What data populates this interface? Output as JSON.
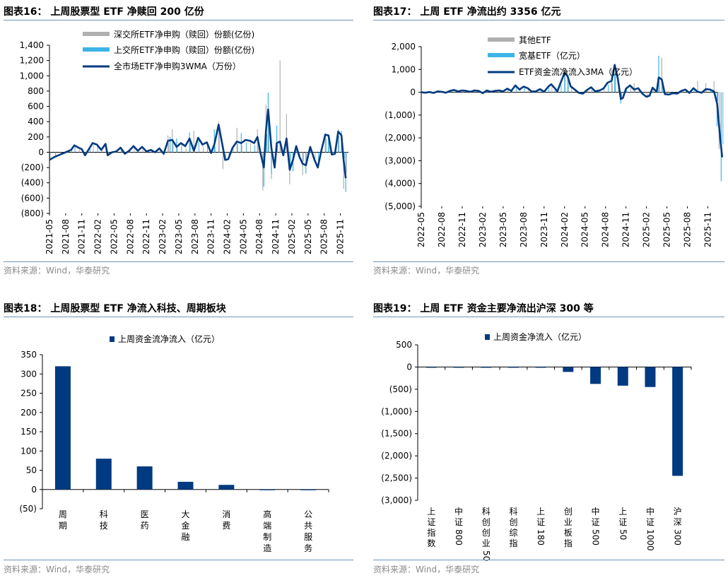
{
  "source_text": "资料来源：Wind，华泰研究",
  "colors": {
    "navy": "#003a80",
    "cyan": "#3cb4e6",
    "grey": "#b0b0b0",
    "rule": "#6f94b8"
  },
  "chart_data": [
    {
      "id": "chart16",
      "type": "bar+line",
      "title": "图表16：  上周股票型 ETF 净赎回 200 亿份",
      "legend": [
        "深交所ETF净申购（赎回）份额(亿份)",
        "上交所ETF净申购（赎回）份额(亿份)",
        "全市场ETF净申购3WMA（万份）"
      ],
      "y_ticks": [
        "1,400",
        "1,200",
        "1,000",
        "800",
        "600",
        "400",
        "200",
        "0",
        "(200)",
        "(400)",
        "(600)",
        "(800)"
      ],
      "ylim": [
        -800,
        1400
      ],
      "x_ticks": [
        "2021-05",
        "2021-08",
        "2021-11",
        "2022-02",
        "2022-05",
        "2022-08",
        "2022-11",
        "2023-02",
        "2023-05",
        "2023-08",
        "2023-11",
        "2024-02",
        "2024-05",
        "2024-08",
        "2024-11",
        "2025-02",
        "2025-05",
        "2025-08",
        "2025-11"
      ],
      "line_points": [
        [
          0,
          -100
        ],
        [
          0.5,
          -60
        ],
        [
          1,
          -30
        ],
        [
          1.5,
          0
        ],
        [
          2,
          30
        ],
        [
          2.3,
          90
        ],
        [
          2.7,
          60
        ],
        [
          3,
          40
        ],
        [
          3.3,
          -40
        ],
        [
          3.7,
          50
        ],
        [
          4,
          120
        ],
        [
          4.4,
          100
        ],
        [
          4.8,
          30
        ],
        [
          5.2,
          110
        ],
        [
          5.4,
          -40
        ],
        [
          5.8,
          0
        ],
        [
          6.2,
          10
        ],
        [
          6.6,
          60
        ],
        [
          7,
          -20
        ],
        [
          7.4,
          20
        ],
        [
          7.8,
          80
        ],
        [
          8.2,
          20
        ],
        [
          8.6,
          70
        ],
        [
          9,
          10
        ],
        [
          9.4,
          30
        ],
        [
          9.8,
          0
        ],
        [
          10.2,
          50
        ],
        [
          10.6,
          -20
        ],
        [
          11,
          150
        ],
        [
          11.4,
          160
        ],
        [
          11.8,
          70
        ],
        [
          12.2,
          120
        ],
        [
          12.6,
          80
        ],
        [
          13,
          180
        ],
        [
          13.4,
          20
        ],
        [
          13.8,
          190
        ],
        [
          14.2,
          100
        ],
        [
          14.6,
          130
        ],
        [
          15,
          -10
        ],
        [
          15.3,
          100
        ],
        [
          15.7,
          360
        ],
        [
          16.1,
          60
        ],
        [
          16.3,
          -100
        ],
        [
          16.6,
          -90
        ],
        [
          17,
          60
        ],
        [
          17.4,
          140
        ],
        [
          17.8,
          120
        ],
        [
          18.2,
          160
        ],
        [
          18.6,
          150
        ],
        [
          19,
          120
        ],
        [
          19.3,
          200
        ],
        [
          19.6,
          -20
        ],
        [
          19.9,
          -200
        ],
        [
          20.1,
          300
        ],
        [
          20.3,
          560
        ],
        [
          20.6,
          50
        ],
        [
          20.9,
          -200
        ],
        [
          21.1,
          120
        ],
        [
          21.4,
          140
        ],
        [
          21.7,
          -40
        ],
        [
          22,
          180
        ],
        [
          22.3,
          -230
        ],
        [
          22.6,
          -100
        ],
        [
          22.9,
          80
        ],
        [
          23.2,
          -60
        ],
        [
          23.5,
          -150
        ],
        [
          23.8,
          -170
        ],
        [
          24.2,
          70
        ],
        [
          24.6,
          -100
        ],
        [
          24.9,
          -200
        ],
        [
          25.2,
          0
        ],
        [
          25.6,
          230
        ],
        [
          25.9,
          220
        ],
        [
          26.2,
          -30
        ],
        [
          26.5,
          -20
        ],
        [
          26.8,
          270
        ],
        [
          27.1,
          220
        ],
        [
          27.3,
          -100
        ],
        [
          27.5,
          -340
        ]
      ],
      "spikes_grey": [
        [
          11,
          220
        ],
        [
          11.4,
          300
        ],
        [
          13.4,
          280
        ],
        [
          15.7,
          400
        ],
        [
          16.1,
          -220
        ],
        [
          17.4,
          320
        ],
        [
          19.3,
          300
        ],
        [
          19.8,
          -500
        ],
        [
          20.1,
          620
        ],
        [
          20.6,
          -350
        ],
        [
          21.4,
          1200
        ],
        [
          22,
          500
        ],
        [
          22.3,
          -420
        ],
        [
          23.5,
          -300
        ],
        [
          25.6,
          250
        ],
        [
          26.8,
          300
        ],
        [
          27.3,
          -480
        ]
      ],
      "spikes_cyan": [
        [
          11.2,
          200
        ],
        [
          11.8,
          180
        ],
        [
          13,
          260
        ],
        [
          15.3,
          300
        ],
        [
          17.8,
          250
        ],
        [
          19.9,
          -450
        ],
        [
          20.3,
          780
        ],
        [
          20.6,
          -280
        ],
        [
          21.1,
          350
        ],
        [
          22.6,
          -250
        ],
        [
          23.8,
          -280
        ],
        [
          25.9,
          220
        ],
        [
          27.1,
          280
        ],
        [
          27.5,
          -520
        ]
      ]
    },
    {
      "id": "chart17",
      "type": "bar+line",
      "title": "图表17：  上周 ETF 净流出约 3356 亿元",
      "legend": [
        "其他ETF",
        "宽基ETF（亿元）",
        "ETF资金流净流入3MA（亿元）"
      ],
      "y_ticks": [
        "2,000",
        "1,000",
        "0",
        "(1,000)",
        "(2,000)",
        "(3,000)",
        "(4,000)",
        "(5,000)"
      ],
      "ylim": [
        -5000,
        2000
      ],
      "x_ticks": [
        "2022-05",
        "2022-08",
        "2022-11",
        "2023-02",
        "2023-05",
        "2023-08",
        "2023-11",
        "2024-02",
        "2024-05",
        "2024-08",
        "2024-11",
        "2025-02",
        "2025-05",
        "2025-08",
        "2025-11"
      ],
      "line_points": [
        [
          0,
          0
        ],
        [
          0.4,
          -20
        ],
        [
          0.8,
          10
        ],
        [
          1.2,
          -30
        ],
        [
          1.6,
          40
        ],
        [
          2,
          20
        ],
        [
          2.4,
          -20
        ],
        [
          2.8,
          60
        ],
        [
          3.2,
          100
        ],
        [
          3.6,
          40
        ],
        [
          4,
          80
        ],
        [
          4.4,
          60
        ],
        [
          4.8,
          20
        ],
        [
          5.2,
          80
        ],
        [
          5.6,
          60
        ],
        [
          6,
          -40
        ],
        [
          6.4,
          80
        ],
        [
          6.8,
          20
        ],
        [
          7.2,
          60
        ],
        [
          7.6,
          80
        ],
        [
          8,
          40
        ],
        [
          8.4,
          160
        ],
        [
          8.8,
          60
        ],
        [
          9.2,
          300
        ],
        [
          9.6,
          120
        ],
        [
          10,
          250
        ],
        [
          10.4,
          180
        ],
        [
          10.8,
          30
        ],
        [
          11.2,
          40
        ],
        [
          11.6,
          140
        ],
        [
          12,
          20
        ],
        [
          12.4,
          240
        ],
        [
          12.7,
          350
        ],
        [
          13,
          200
        ],
        [
          13.3,
          40
        ],
        [
          13.6,
          400
        ],
        [
          14,
          860
        ],
        [
          14.3,
          700
        ],
        [
          14.6,
          260
        ],
        [
          15,
          120
        ],
        [
          15.4,
          -30
        ],
        [
          15.8,
          -60
        ],
        [
          16.2,
          100
        ],
        [
          16.6,
          220
        ],
        [
          17,
          40
        ],
        [
          17.4,
          80
        ],
        [
          17.8,
          160
        ],
        [
          18.2,
          420
        ],
        [
          18.6,
          500
        ],
        [
          18.9,
          1200
        ],
        [
          19.2,
          600
        ],
        [
          19.5,
          -300
        ],
        [
          19.7,
          -250
        ],
        [
          20,
          160
        ],
        [
          20.4,
          300
        ],
        [
          20.8,
          120
        ],
        [
          21.2,
          180
        ],
        [
          21.6,
          -60
        ],
        [
          22,
          -200
        ],
        [
          22.3,
          -150
        ],
        [
          22.6,
          200
        ],
        [
          23,
          20
        ],
        [
          23.2,
          650
        ],
        [
          23.5,
          560
        ],
        [
          23.8,
          -80
        ],
        [
          24.2,
          -100
        ],
        [
          24.6,
          -40
        ],
        [
          25,
          -60
        ],
        [
          25.4,
          60
        ],
        [
          25.8,
          120
        ],
        [
          26.2,
          -30
        ],
        [
          26.6,
          180
        ],
        [
          27,
          20
        ],
        [
          27.4,
          -20
        ],
        [
          27.8,
          140
        ],
        [
          28.2,
          120
        ],
        [
          28.6,
          40
        ],
        [
          28.9,
          -500
        ],
        [
          29.2,
          -2000
        ],
        [
          29.4,
          -2850
        ]
      ],
      "spikes_grey": [
        [
          14.3,
          800
        ],
        [
          18.6,
          1000
        ],
        [
          20.8,
          400
        ],
        [
          23.5,
          1500
        ],
        [
          27,
          500
        ],
        [
          27.8,
          400
        ],
        [
          28.6,
          500
        ],
        [
          29.1,
          -2500
        ]
      ],
      "spikes_cyan": [
        [
          14,
          900
        ],
        [
          18.9,
          800
        ],
        [
          19.5,
          -500
        ],
        [
          23.2,
          1600
        ],
        [
          28.9,
          -1500
        ],
        [
          29.3,
          -3900
        ]
      ]
    },
    {
      "id": "chart18",
      "type": "bar",
      "title": "图表18：  上周股票型 ETF 净流入科技、周期板块",
      "legend": [
        "上周资金流净流入（亿元）"
      ],
      "categories": [
        "周期",
        "科技",
        "医药",
        "大金融",
        "消费",
        "高端制造",
        "公共服务"
      ],
      "values": [
        320,
        80,
        60,
        20,
        12,
        -1,
        -1
      ],
      "y_ticks": [
        "350",
        "300",
        "250",
        "200",
        "150",
        "100",
        "50",
        "0",
        "(50)"
      ],
      "ylim": [
        -50,
        350
      ]
    },
    {
      "id": "chart19",
      "type": "bar",
      "title": "图表19：  上周 ETF 资金主要净流出沪深 300 等",
      "legend": [
        "上周资金净流入（亿元）"
      ],
      "categories": [
        "上证指数",
        "中证800",
        "科创创业50",
        "科创综指",
        "上证180",
        "创业板指",
        "中证500",
        "上证50",
        "中证1000",
        "沪深300"
      ],
      "values": [
        -5,
        -5,
        -8,
        -10,
        -10,
        -110,
        -380,
        -420,
        -450,
        -2450
      ],
      "y_ticks": [
        "500",
        "0",
        "(500)",
        "(1,000)",
        "(1,500)",
        "(2,000)",
        "(2,500)",
        "(3,000)"
      ],
      "ylim": [
        -3000,
        500
      ]
    }
  ]
}
